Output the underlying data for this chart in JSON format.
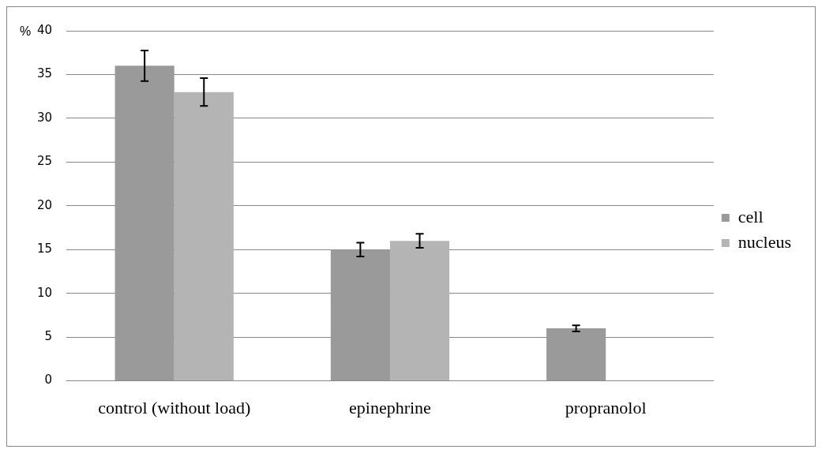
{
  "chart_data": {
    "type": "bar",
    "ylabel": "%",
    "categories": [
      "control (without load)",
      "epinephrine",
      "propranolol"
    ],
    "series": [
      {
        "name": "cell",
        "color": "#9a9a9a",
        "values": [
          36,
          15,
          6
        ],
        "errors": [
          1.75,
          0.8,
          0.35
        ]
      },
      {
        "name": "nucleus",
        "color": "#b4b4b4",
        "values": [
          33,
          16,
          null
        ],
        "errors": [
          1.6,
          0.8,
          null
        ]
      }
    ],
    "ylim": [
      0,
      40
    ],
    "yticks": [
      0,
      5,
      10,
      15,
      20,
      25,
      30,
      35,
      40
    ],
    "grid": "y",
    "legend": "right"
  }
}
